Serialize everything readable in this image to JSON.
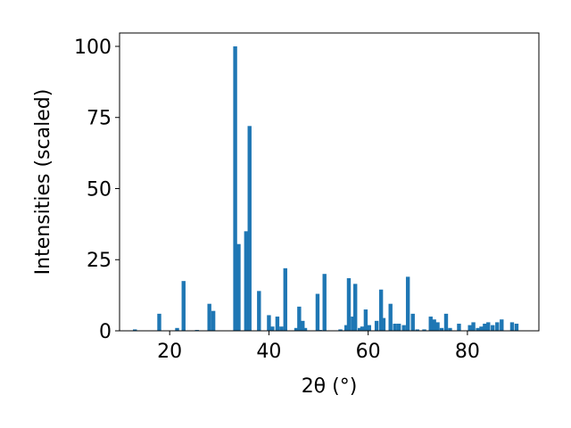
{
  "chart_data": {
    "type": "bar",
    "x_label": "2θ (°)",
    "y_label": "Intensities (scaled)",
    "color": "#1f77b4",
    "x": [
      13,
      17.9,
      21.5,
      22.8,
      25.5,
      28,
      28.8,
      33.2,
      33.9,
      35.4,
      36.1,
      38,
      40,
      40.7,
      41.7,
      42.5,
      43.3,
      45.5,
      46.1,
      46.8,
      47.3,
      49.8,
      50.3,
      51.2,
      54.4,
      55.6,
      56.1,
      56.9,
      57.4,
      58.3,
      58.8,
      59.5,
      60.2,
      61.7,
      62.6,
      63.1,
      64.5,
      65.4,
      66.2,
      67.2,
      68,
      69,
      69.9,
      71.3,
      72.6,
      73.3,
      74,
      74.8,
      75.7,
      76.5,
      78.3,
      80.5,
      81.2,
      82.1,
      82.8,
      83.5,
      84.2,
      85.1,
      86,
      86.9,
      89,
      89.9
    ],
    "values": [
      0.5,
      6,
      1,
      17.5,
      0.3,
      9.5,
      7,
      100,
      30.5,
      35,
      72,
      14,
      5.5,
      1.5,
      5,
      1.5,
      22,
      1,
      8.5,
      3.5,
      1,
      13,
      0.3,
      20,
      0.5,
      2,
      18.5,
      5,
      16.5,
      1,
      1.5,
      7.5,
      2,
      3.5,
      14.5,
      4.5,
      9.5,
      2.5,
      2.5,
      2,
      19,
      6,
      0.5,
      0.5,
      5,
      4,
      3,
      1,
      6,
      1,
      2.5,
      2,
      3,
      1,
      1.5,
      2.5,
      3,
      2,
      3,
      4,
      3,
      2.5
    ],
    "xlim": [
      9.9,
      94.4
    ],
    "ylim": [
      0,
      104.7
    ],
    "xticks": [
      20,
      40,
      60,
      80
    ],
    "yticks": [
      0,
      25,
      50,
      75,
      100
    ]
  }
}
